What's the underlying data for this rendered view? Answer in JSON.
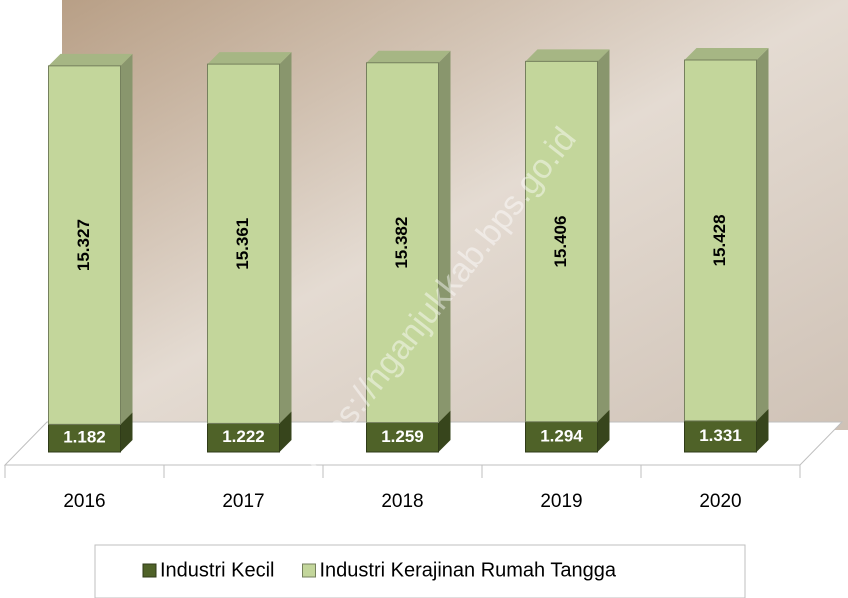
{
  "chart_data": {
    "type": "bar",
    "stacked": true,
    "categories": [
      "2016",
      "2017",
      "2018",
      "2019",
      "2020"
    ],
    "series": [
      {
        "name": "Industri Kecil",
        "color": "#4f6228",
        "label_color": "#ffffff",
        "values": [
          1182,
          1222,
          1259,
          1294,
          1331
        ],
        "value_labels": [
          "1.182",
          "1.222",
          "1.259",
          "1.294",
          "1.331"
        ]
      },
      {
        "name": "Industri Kerajinan Rumah Tangga",
        "color": "#c3d69b",
        "label_color": "#000000",
        "values": [
          15327,
          15361,
          15382,
          15406,
          15428
        ],
        "value_labels": [
          "15.327",
          "15.361",
          "15.382",
          "15.406",
          "15.428"
        ]
      }
    ],
    "watermark": "https://nganjukkab.bps.go.id"
  }
}
